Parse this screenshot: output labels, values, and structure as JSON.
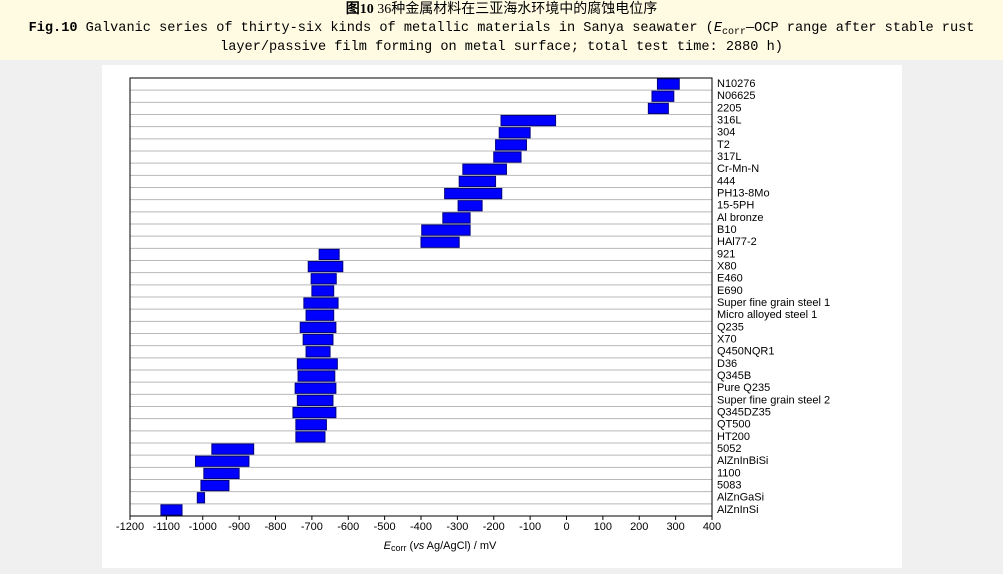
{
  "caption": {
    "cn_fig": "图10",
    "cn_text": " 36种金属材料在三亚海水环境中的腐蚀电位序",
    "en_fig": "Fig.10",
    "en_parts": [
      " Galvanic series of thirty-six kinds of metallic materials in Sanya seawater (",
      "E",
      "corr",
      "—OCP range after stable rust",
      "layer/passive film forming on metal surface; total test time: 2880 h)"
    ]
  },
  "chart_data": {
    "type": "range_bar",
    "xlabel": [
      "E",
      "corr",
      " (",
      "vs",
      " Ag/AgCl) / mV"
    ],
    "categories": [
      "N10276",
      "N06625",
      "2205",
      "316L",
      "304",
      "T2",
      "317L",
      "Cr-Mn-N",
      "444",
      "PH13-8Mo",
      "15-5PH",
      "Al bronze",
      "B10",
      "HAl77-2",
      "921",
      "X80",
      "E460",
      "E690",
      "Super fine grain steel 1",
      "Micro alloyed steel 1",
      "Q235",
      "X70",
      "Q450NQR1",
      "D36",
      "Q345B",
      "Pure Q235",
      "Super fine grain steel 2",
      "Q345DZ35",
      "QT500",
      "HT200",
      "5052",
      "AlZnInBiSi",
      "1100",
      "5083",
      "AlZnGaSi",
      "AlZnInSi"
    ],
    "low": [
      250,
      235,
      225,
      -180,
      -185,
      -195,
      -200,
      -285,
      -295,
      -335,
      -298,
      -340,
      -398,
      -400,
      -680,
      -710,
      -702,
      -700,
      -722,
      -716,
      -732,
      -724,
      -716,
      -740,
      -738,
      -746,
      -740,
      -752,
      -744,
      -744,
      -975,
      -1020,
      -997,
      -1005,
      -1015,
      -1115
    ],
    "high": [
      310,
      295,
      280,
      -30,
      -100,
      -110,
      -125,
      -165,
      -195,
      -178,
      -232,
      -265,
      -265,
      -295,
      -625,
      -615,
      -633,
      -640,
      -628,
      -640,
      -634,
      -642,
      -650,
      -630,
      -637,
      -634,
      -642,
      -634,
      -660,
      -664,
      -860,
      -873,
      -900,
      -928,
      -995,
      -1057
    ],
    "color": "#0000ff",
    "edge_color": "#000080",
    "xlim": [
      -1200,
      400
    ],
    "xticks": [
      -1200,
      -1100,
      -1000,
      -900,
      -800,
      -700,
      -600,
      -500,
      -400,
      -300,
      -200,
      -100,
      0,
      100,
      200,
      300,
      400
    ],
    "grid": true
  }
}
